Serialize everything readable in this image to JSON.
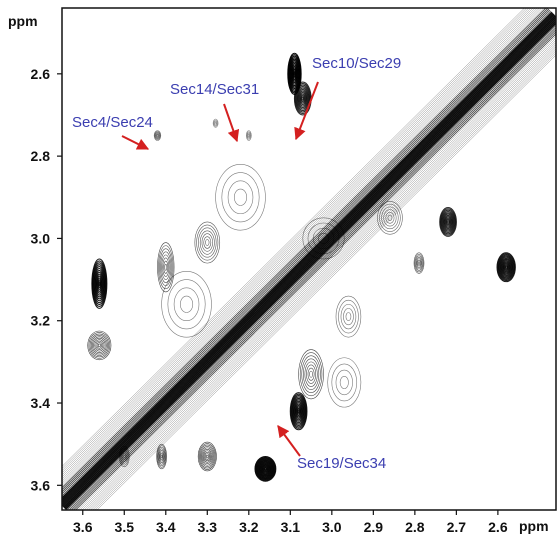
{
  "chart_data": {
    "type": "heatmap",
    "title": "",
    "x_unit": "ppm",
    "y_unit": "ppm",
    "x_axis": {
      "range": [
        3.65,
        2.46
      ],
      "reversed": true,
      "ticks": [
        3.6,
        3.5,
        3.4,
        3.3,
        3.2,
        3.1,
        3.0,
        2.9,
        2.8,
        2.7,
        2.6
      ],
      "tick_labels": [
        "3.6",
        "3.5",
        "3.4",
        "3.3",
        "3.2",
        "3.1",
        "3.0",
        "2.9",
        "2.8",
        "2.7",
        "2.6"
      ]
    },
    "y_axis": {
      "range": [
        2.44,
        3.66
      ],
      "reversed": true,
      "ticks": [
        2.6,
        2.8,
        3.0,
        3.2,
        3.4,
        3.6
      ],
      "tick_labels": [
        "2.6",
        "2.8",
        "3.0",
        "3.2",
        "3.4",
        "3.6"
      ]
    },
    "grid": false,
    "diagonal": [
      {
        "x": 3.65,
        "y": 3.65
      },
      {
        "x": 2.46,
        "y": 2.46
      }
    ],
    "peaks": [
      {
        "x": 3.56,
        "y": 3.11,
        "intensity": 0.9,
        "sx": 0.018,
        "sy": 0.06
      },
      {
        "x": 3.56,
        "y": 3.26,
        "intensity": 0.7,
        "sx": 0.028,
        "sy": 0.035
      },
      {
        "x": 3.4,
        "y": 3.07,
        "intensity": 0.6,
        "sx": 0.02,
        "sy": 0.06
      },
      {
        "x": 3.3,
        "y": 3.01,
        "intensity": 0.5,
        "sx": 0.03,
        "sy": 0.05
      },
      {
        "x": 3.09,
        "y": 2.6,
        "intensity": 1.0,
        "sx": 0.016,
        "sy": 0.05
      },
      {
        "x": 3.07,
        "y": 2.66,
        "intensity": 0.8,
        "sx": 0.02,
        "sy": 0.04
      },
      {
        "x": 3.08,
        "y": 3.42,
        "intensity": 0.9,
        "sx": 0.02,
        "sy": 0.045
      },
      {
        "x": 3.05,
        "y": 3.33,
        "intensity": 0.6,
        "sx": 0.03,
        "sy": 0.06
      },
      {
        "x": 3.16,
        "y": 3.56,
        "intensity": 1.0,
        "sx": 0.025,
        "sy": 0.03
      },
      {
        "x": 3.3,
        "y": 3.53,
        "intensity": 0.7,
        "sx": 0.022,
        "sy": 0.035
      },
      {
        "x": 3.41,
        "y": 3.53,
        "intensity": 0.6,
        "sx": 0.012,
        "sy": 0.03
      },
      {
        "x": 3.5,
        "y": 3.53,
        "intensity": 0.4,
        "sx": 0.012,
        "sy": 0.025
      },
      {
        "x": 2.72,
        "y": 2.96,
        "intensity": 0.8,
        "sx": 0.02,
        "sy": 0.035
      },
      {
        "x": 2.58,
        "y": 3.07,
        "intensity": 0.9,
        "sx": 0.022,
        "sy": 0.035
      },
      {
        "x": 2.79,
        "y": 3.06,
        "intensity": 0.5,
        "sx": 0.012,
        "sy": 0.025
      },
      {
        "x": 3.42,
        "y": 2.75,
        "intensity": 0.4,
        "sx": 0.008,
        "sy": 0.012
      },
      {
        "x": 3.2,
        "y": 2.75,
        "intensity": 0.3,
        "sx": 0.006,
        "sy": 0.012
      },
      {
        "x": 3.28,
        "y": 2.72,
        "intensity": 0.2,
        "sx": 0.006,
        "sy": 0.01
      },
      {
        "x": 3.22,
        "y": 2.9,
        "intensity": 0.3,
        "sx": 0.06,
        "sy": 0.08
      },
      {
        "x": 3.35,
        "y": 3.16,
        "intensity": 0.3,
        "sx": 0.06,
        "sy": 0.08
      },
      {
        "x": 2.97,
        "y": 3.35,
        "intensity": 0.3,
        "sx": 0.04,
        "sy": 0.06
      },
      {
        "x": 2.86,
        "y": 2.95,
        "intensity": 0.4,
        "sx": 0.03,
        "sy": 0.04
      },
      {
        "x": 3.02,
        "y": 3.0,
        "intensity": 0.3,
        "sx": 0.05,
        "sy": 0.05
      },
      {
        "x": 2.96,
        "y": 3.19,
        "intensity": 0.35,
        "sx": 0.03,
        "sy": 0.05
      }
    ],
    "annotations": [
      {
        "text": "Sec4/Sec24",
        "target": [
          3.41,
          2.75
        ],
        "color": "#3b3eb0",
        "arrow_color": "#d42020"
      },
      {
        "text": "Sec14/Sec31",
        "target": [
          3.19,
          2.73
        ],
        "color": "#3b3eb0",
        "arrow_color": "#d42020"
      },
      {
        "text": "Sec10/Sec29",
        "target": [
          3.07,
          2.71
        ],
        "color": "#3b3eb0",
        "arrow_color": "#d42020"
      },
      {
        "text": "Sec19/Sec34",
        "target": [
          3.09,
          3.42
        ],
        "color": "#3b3eb0",
        "arrow_color": "#d42020"
      }
    ],
    "colors": {
      "contour": "#000000",
      "label": "#3b3eb0",
      "arrow": "#d42020",
      "axis": "#111111"
    }
  }
}
